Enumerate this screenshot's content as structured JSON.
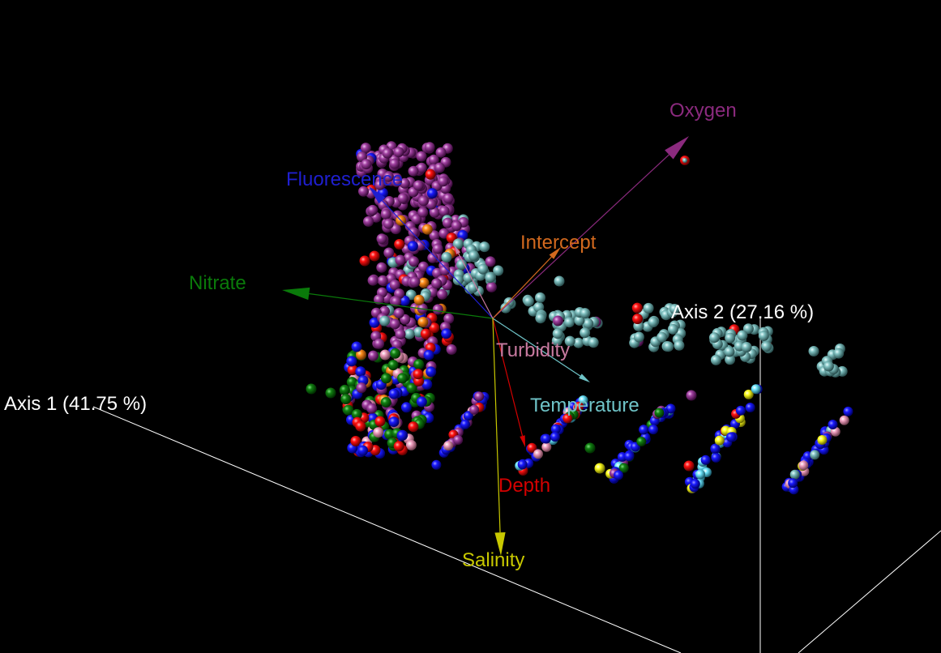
{
  "chart_data": {
    "type": "scatter",
    "subtype": "3d-biplot",
    "background": "#000000",
    "axes": [
      {
        "label": "Axis 1 (41.75 %)",
        "color": "#ffffff"
      },
      {
        "label": "Axis 2 (27.16 %)",
        "color": "#ffffff"
      }
    ],
    "vectors": [
      {
        "name": "Oxygen",
        "color": "#8b2a7e"
      },
      {
        "name": "Fluorescence",
        "color": "#1f1fd0"
      },
      {
        "name": "Intercept",
        "color": "#d2691e"
      },
      {
        "name": "Nitrate",
        "color": "#0a7a0a"
      },
      {
        "name": "Turbidity",
        "color": "#c87aa0"
      },
      {
        "name": "Temperature",
        "color": "#6fc4c8"
      },
      {
        "name": "Depth",
        "color": "#d40000"
      },
      {
        "name": "Salinity",
        "color": "#c8c800"
      }
    ],
    "point_colors": {
      "purple": "#a040a0",
      "teal": "#7fc0c0",
      "blue": "#1a1aff",
      "green": "#128012",
      "red": "#ff1010",
      "orange": "#ff8c1a",
      "pink": "#f0a0c0",
      "yellow": "#ffff20",
      "cyan": "#70e8ff"
    }
  }
}
